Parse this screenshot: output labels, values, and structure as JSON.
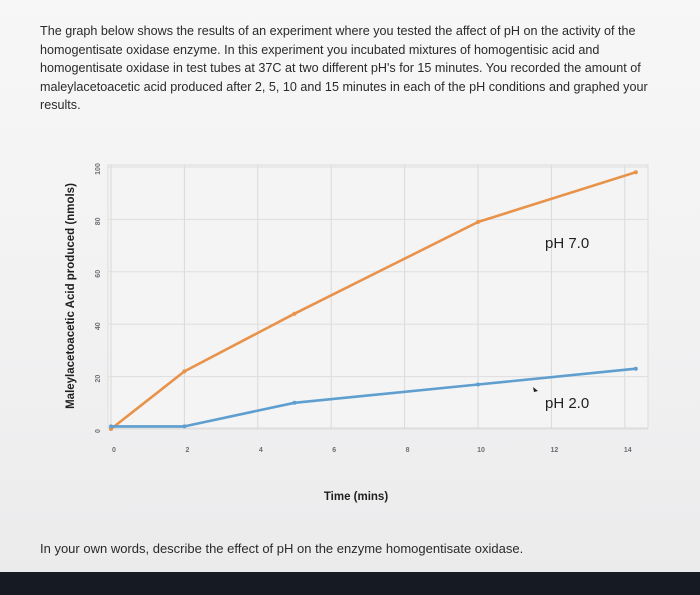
{
  "intro_text": "The graph below shows the results of an experiment where you tested the affect of pH on the activity of the homogentisate oxidase enzyme. In this experiment you incubated mixtures of homogentisic acid and homogentisate oxidase in test tubes at 37C at two different pH's for 15 minutes. You recorded the amount of maleylacetoacetic acid produced after 2, 5, 10 and 15 minutes in each of the pH conditions and graphed your results.",
  "question_text": "In your own words, describe the effect of pH on the enzyme homogentisate oxidase.",
  "chart_data": {
    "type": "line",
    "xlabel": "Time (mins)",
    "ylabel": "Maleylacetoacetic Acid produced (nmols)",
    "x_ticks": [
      "0",
      "2",
      "4",
      "6",
      "8",
      "10",
      "12",
      "14"
    ],
    "y_ticks": [
      "0",
      "20",
      "40",
      "60",
      "80",
      "100"
    ],
    "xlim": [
      0,
      14
    ],
    "ylim": [
      0,
      100
    ],
    "grid": true,
    "series": [
      {
        "name": "pH 7.0",
        "color": "#e8924a",
        "points": [
          [
            0,
            0
          ],
          [
            2,
            22
          ],
          [
            5,
            44
          ],
          [
            10,
            79
          ],
          [
            14.3,
            98
          ]
        ]
      },
      {
        "name": "pH 2.0",
        "color": "#5e9fd0",
        "points": [
          [
            0,
            1
          ],
          [
            2,
            1
          ],
          [
            5,
            10
          ],
          [
            10,
            17
          ],
          [
            14.3,
            23
          ]
        ]
      }
    ]
  }
}
